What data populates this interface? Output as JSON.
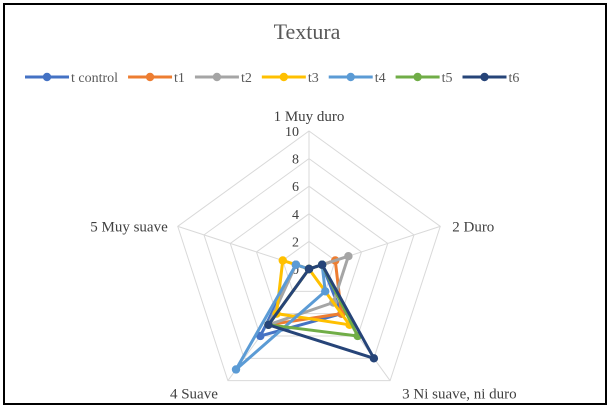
{
  "chart_data": {
    "type": "radar",
    "title": "Textura",
    "axes": [
      "1 Muy duro",
      "2 Duro",
      "3 Ni suave, ni duro",
      "4 Suave",
      "5 Muy suave"
    ],
    "rlim": [
      0,
      10
    ],
    "ticks": [
      0,
      2,
      4,
      6,
      8,
      10
    ],
    "tick_labels": [
      "0",
      "2",
      "4",
      "6",
      "8",
      "10"
    ],
    "legend_position": "top",
    "grid": true,
    "series": [
      {
        "name": "t control",
        "color": "#4472C4",
        "values": [
          0,
          1,
          4,
          6,
          1
        ]
      },
      {
        "name": "t1",
        "color": "#ED7D31",
        "values": [
          0,
          2,
          4,
          5,
          0
        ]
      },
      {
        "name": "t2",
        "color": "#A5A5A5",
        "values": [
          0,
          3,
          3,
          5,
          1
        ]
      },
      {
        "name": "t3",
        "color": "#FFC000",
        "values": [
          0,
          0,
          5,
          4,
          2
        ]
      },
      {
        "name": "t4",
        "color": "#5B9BD5",
        "values": [
          0,
          1,
          2,
          9,
          1
        ]
      },
      {
        "name": "t5",
        "color": "#70AD47",
        "values": [
          0,
          1,
          6,
          5,
          0
        ]
      },
      {
        "name": "t6",
        "color": "#264478",
        "values": [
          0,
          1,
          8,
          5,
          0
        ]
      }
    ]
  }
}
